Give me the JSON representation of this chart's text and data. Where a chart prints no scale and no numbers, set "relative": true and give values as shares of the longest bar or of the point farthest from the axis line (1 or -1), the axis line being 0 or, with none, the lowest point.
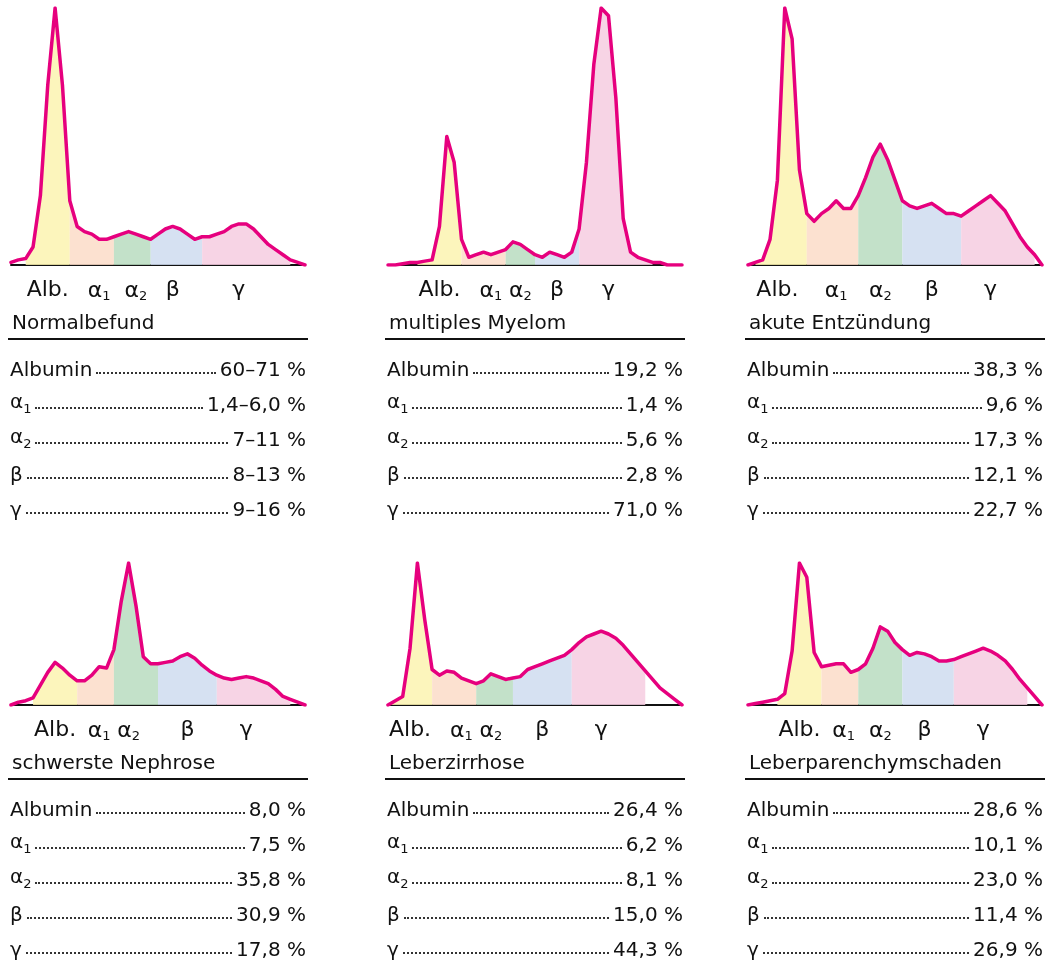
{
  "chart_data": [
    {
      "type": "line",
      "title": "Normalbefund",
      "relative": true,
      "categories": [
        null,
        null,
        null,
        null,
        null,
        "Alb.",
        null,
        null,
        null,
        null,
        null,
        null,
        "α$_{1}$",
        null,
        null,
        null,
        null,
        "α$_{2}$",
        null,
        null,
        null,
        null,
        "β",
        null,
        null,
        null,
        null,
        null,
        null,
        null,
        null,
        "γ",
        null,
        null,
        null,
        null,
        null,
        null,
        null,
        null,
        null
      ],
      "series": [
        {
          "color": "#e6007e",
          "values": [
            0.01,
            0.02,
            0.025,
            0.07,
            0.27,
            0.7,
            1,
            0.7,
            0.25,
            0.15,
            0.13,
            0.12,
            0.1,
            0.1,
            0.11,
            0.12,
            0.13,
            0.12,
            0.11,
            0.1,
            0.12,
            0.14,
            0.15,
            0.14,
            0.12,
            0.1,
            0.11,
            0.11,
            0.12,
            0.13,
            0.15,
            0.16,
            0.16,
            0.14,
            0.11,
            0.08,
            0.06,
            0.04,
            0.02,
            0.01,
            0
          ]
        },
        {
          "type": "area",
          "color": "#fbf3b0",
          "values": [
            null,
            null,
            0.025,
            0.07,
            0.27,
            0.7,
            1,
            0.7,
            0.25,
            null,
            null,
            null,
            null,
            null,
            null,
            null,
            null,
            null,
            null,
            null,
            null,
            null,
            null,
            null,
            null,
            null,
            null,
            null,
            null,
            null,
            null,
            null,
            null,
            null,
            null,
            null,
            null,
            null,
            null,
            null,
            null
          ]
        },
        {
          "type": "area",
          "color": "#fbdcc8",
          "values": [
            null,
            null,
            null,
            null,
            null,
            null,
            null,
            null,
            0.25,
            0.15,
            0.13,
            0.12,
            0.1,
            0.1,
            0.11,
            null,
            null,
            null,
            null,
            null,
            null,
            null,
            null,
            null,
            null,
            null,
            null,
            null,
            null,
            null,
            null,
            null,
            null,
            null,
            null,
            null,
            null,
            null,
            null,
            null,
            null
          ]
        },
        {
          "type": "area",
          "color": "#b9dcc0",
          "values": [
            null,
            null,
            null,
            null,
            null,
            null,
            null,
            null,
            null,
            null,
            null,
            null,
            null,
            null,
            0.11,
            0.12,
            0.13,
            0.12,
            0.11,
            0.1,
            null,
            null,
            null,
            null,
            null,
            null,
            null,
            null,
            null,
            null,
            null,
            null,
            null,
            null,
            null,
            null,
            null,
            null,
            null,
            null,
            null
          ]
        },
        {
          "type": "area",
          "color": "#cfdcf0",
          "values": [
            null,
            null,
            null,
            null,
            null,
            null,
            null,
            null,
            null,
            null,
            null,
            null,
            null,
            null,
            null,
            null,
            null,
            null,
            null,
            0.1,
            0.12,
            0.14,
            0.15,
            0.14,
            0.12,
            0.1,
            0.11,
            null,
            null,
            null,
            null,
            null,
            null,
            null,
            null,
            null,
            null,
            null,
            null,
            null,
            null
          ]
        },
        {
          "type": "area",
          "color": "#f6cde0",
          "values": [
            null,
            null,
            null,
            null,
            null,
            null,
            null,
            null,
            null,
            null,
            null,
            null,
            null,
            null,
            null,
            null,
            null,
            null,
            null,
            null,
            null,
            null,
            null,
            null,
            null,
            null,
            0.11,
            0.11,
            0.12,
            0.13,
            0.15,
            0.16,
            0.16,
            0.14,
            0.11,
            0.08,
            0.06,
            0.04,
            0.02,
            null,
            null
          ]
        }
      ],
      "annotations": [
        "Albumin\t60–71 %",
        "α$_{1}$\t1,4–6,0 %",
        "α$_{2}$\t7–11 %",
        "β\t8–13 %",
        "γ\t9–16 %"
      ]
    },
    {
      "type": "line",
      "title": "multiples Myelom",
      "relative": true,
      "categories": [
        null,
        null,
        null,
        null,
        null,
        null,
        null,
        "Alb.",
        null,
        null,
        null,
        null,
        null,
        null,
        "α$_{1}$",
        null,
        null,
        null,
        "α$_{2}$",
        null,
        null,
        null,
        null,
        "β",
        null,
        null,
        null,
        null,
        null,
        null,
        "γ",
        null,
        null,
        null,
        null,
        null,
        null,
        null,
        null,
        null,
        null
      ],
      "series": [
        {
          "color": "#e6007e",
          "values": [
            0,
            0,
            0.005,
            0.01,
            0.01,
            0.015,
            0.02,
            0.15,
            0.5,
            0.4,
            0.1,
            0.03,
            0.04,
            0.05,
            0.04,
            0.05,
            0.06,
            0.09,
            0.08,
            0.06,
            0.04,
            0.03,
            0.05,
            0.04,
            0.03,
            0.05,
            0.14,
            0.4,
            0.78,
            1,
            0.97,
            0.65,
            0.18,
            0.05,
            0.03,
            0.02,
            0.01,
            0.01,
            0,
            0,
            0
          ]
        },
        {
          "type": "area",
          "color": "#fbf3b0",
          "values": [
            null,
            null,
            null,
            null,
            0.01,
            0.015,
            0.02,
            0.15,
            0.5,
            0.4,
            0.1,
            null,
            null,
            null,
            null,
            null,
            null,
            null,
            null,
            null,
            null,
            null,
            null,
            null,
            null,
            null,
            null,
            null,
            null,
            null,
            null,
            null,
            null,
            null,
            null,
            null,
            null,
            null,
            null,
            null,
            null
          ]
        },
        {
          "type": "area",
          "color": "#fbdcc8",
          "values": [
            null,
            null,
            null,
            null,
            null,
            null,
            null,
            null,
            null,
            null,
            0.1,
            0.03,
            0.04,
            0.05,
            0.04,
            0.05,
            0.06,
            null,
            null,
            null,
            null,
            null,
            null,
            null,
            null,
            null,
            null,
            null,
            null,
            null,
            null,
            null,
            null,
            null,
            null,
            null,
            null,
            null,
            null,
            null,
            null
          ]
        },
        {
          "type": "area",
          "color": "#b9dcc0",
          "values": [
            null,
            null,
            null,
            null,
            null,
            null,
            null,
            null,
            null,
            null,
            null,
            null,
            null,
            null,
            null,
            null,
            0.06,
            0.09,
            0.08,
            0.06,
            0.04,
            null,
            null,
            null,
            null,
            null,
            null,
            null,
            null,
            null,
            null,
            null,
            null,
            null,
            null,
            null,
            null,
            null,
            null,
            null,
            null
          ]
        },
        {
          "type": "area",
          "color": "#cfdcf0",
          "values": [
            null,
            null,
            null,
            null,
            null,
            null,
            null,
            null,
            null,
            null,
            null,
            null,
            null,
            null,
            null,
            null,
            null,
            null,
            null,
            null,
            0.04,
            0.03,
            0.05,
            0.04,
            0.03,
            0.05,
            0.14,
            null,
            null,
            null,
            null,
            null,
            null,
            null,
            null,
            null,
            null,
            null,
            null,
            null,
            null
          ]
        },
        {
          "type": "area",
          "color": "#f6cde0",
          "values": [
            null,
            null,
            null,
            null,
            null,
            null,
            null,
            null,
            null,
            null,
            null,
            null,
            null,
            null,
            null,
            null,
            null,
            null,
            null,
            null,
            null,
            null,
            null,
            null,
            null,
            null,
            0.14,
            0.4,
            0.78,
            1,
            0.97,
            0.65,
            0.18,
            0.05,
            0.03,
            0.02,
            0.01,
            null,
            null,
            null,
            null
          ]
        }
      ],
      "annotations": [
        "Albumin\t19,2 %",
        "α$_{1}$\t1,4 %",
        "α$_{2}$\t5,6 %",
        "β\t2,8 %",
        "γ\t71,0 %"
      ]
    },
    {
      "type": "line",
      "title": "akute Entzündung",
      "relative": true,
      "categories": [
        null,
        null,
        null,
        null,
        "Alb.",
        null,
        null,
        null,
        null,
        null,
        null,
        null,
        "α$_{1}$",
        null,
        null,
        null,
        null,
        null,
        "α$_{2}$",
        null,
        null,
        null,
        null,
        null,
        null,
        "β",
        null,
        null,
        null,
        null,
        null,
        null,
        null,
        "γ",
        null,
        null,
        null,
        null,
        null,
        null,
        null
      ],
      "series": [
        {
          "color": "#e6007e",
          "values": [
            0,
            0.01,
            0.02,
            0.1,
            0.33,
            1,
            0.88,
            0.37,
            0.2,
            0.17,
            0.2,
            0.22,
            0.25,
            0.22,
            0.22,
            0.27,
            0.34,
            0.42,
            0.47,
            0.41,
            0.33,
            0.25,
            0.23,
            0.22,
            0.23,
            0.24,
            0.22,
            0.2,
            0.2,
            0.19,
            0.21,
            0.23,
            0.25,
            0.27,
            0.24,
            0.21,
            0.16,
            0.11,
            0.07,
            0.04,
            0
          ]
        },
        {
          "type": "area",
          "color": "#fbf3b0",
          "values": [
            null,
            0.01,
            0.02,
            0.1,
            0.33,
            1,
            0.88,
            0.37,
            0.2,
            null,
            null,
            null,
            null,
            null,
            null,
            null,
            null,
            null,
            null,
            null,
            null,
            null,
            null,
            null,
            null,
            null,
            null,
            null,
            null,
            null,
            null,
            null,
            null,
            null,
            null,
            null,
            null,
            null,
            null,
            null,
            null
          ]
        },
        {
          "type": "area",
          "color": "#fbdcc8",
          "values": [
            null,
            null,
            null,
            null,
            null,
            null,
            null,
            null,
            0.2,
            0.17,
            0.2,
            0.22,
            0.25,
            0.22,
            0.22,
            0.27,
            null,
            null,
            null,
            null,
            null,
            null,
            null,
            null,
            null,
            null,
            null,
            null,
            null,
            null,
            null,
            null,
            null,
            null,
            null,
            null,
            null,
            null,
            null,
            null,
            null
          ]
        },
        {
          "type": "area",
          "color": "#b9dcc0",
          "values": [
            null,
            null,
            null,
            null,
            null,
            null,
            null,
            null,
            null,
            null,
            null,
            null,
            null,
            null,
            null,
            0.27,
            0.34,
            0.42,
            0.47,
            0.41,
            0.33,
            0.25,
            null,
            null,
            null,
            null,
            null,
            null,
            null,
            null,
            null,
            null,
            null,
            null,
            null,
            null,
            null,
            null,
            null,
            null,
            null
          ]
        },
        {
          "type": "area",
          "color": "#cfdcf0",
          "values": [
            null,
            null,
            null,
            null,
            null,
            null,
            null,
            null,
            null,
            null,
            null,
            null,
            null,
            null,
            null,
            null,
            null,
            null,
            null,
            null,
            null,
            0.25,
            0.23,
            0.22,
            0.23,
            0.24,
            0.22,
            0.2,
            0.2,
            0.19,
            null,
            null,
            null,
            null,
            null,
            null,
            null,
            null,
            null,
            null,
            null
          ]
        },
        {
          "type": "area",
          "color": "#f6cde0",
          "values": [
            null,
            null,
            null,
            null,
            null,
            null,
            null,
            null,
            null,
            null,
            null,
            null,
            null,
            null,
            null,
            null,
            null,
            null,
            null,
            null,
            null,
            null,
            null,
            null,
            null,
            null,
            null,
            null,
            null,
            0.19,
            0.21,
            0.23,
            0.25,
            0.27,
            0.24,
            0.21,
            0.16,
            0.11,
            0.07,
            0.04,
            null
          ]
        }
      ],
      "annotations": [
        "Albumin\t38,3 %",
        "α$_{1}$\t9,6 %",
        "α$_{2}$\t17,3 %",
        "β\t12,1 %",
        "γ\t22,7 %"
      ]
    },
    {
      "type": "line",
      "title": "schwerste Nephrose",
      "relative": true,
      "categories": [
        null,
        null,
        null,
        null,
        null,
        null,
        "Alb.",
        null,
        null,
        null,
        null,
        null,
        "α$_{1}$",
        null,
        null,
        null,
        "α$_{2}$",
        null,
        null,
        null,
        null,
        null,
        null,
        null,
        "β",
        null,
        null,
        null,
        null,
        null,
        null,
        null,
        "γ",
        null,
        null,
        null,
        null,
        null,
        null,
        null,
        null
      ],
      "series": [
        {
          "color": "#e6007e",
          "values": [
            0,
            0.02,
            0.03,
            0.05,
            0.14,
            0.23,
            0.3,
            0.26,
            0.21,
            0.17,
            0.17,
            0.21,
            0.27,
            0.26,
            0.39,
            0.73,
            1,
            0.7,
            0.34,
            0.29,
            0.29,
            0.3,
            0.31,
            0.34,
            0.36,
            0.33,
            0.28,
            0.24,
            0.21,
            0.19,
            0.18,
            0.19,
            0.2,
            0.19,
            0.17,
            0.15,
            0.11,
            0.06,
            0.04,
            0.02,
            0
          ]
        },
        {
          "type": "area",
          "color": "#fbf3b0",
          "values": [
            null,
            null,
            null,
            0.05,
            0.14,
            0.23,
            0.3,
            0.26,
            0.21,
            0.17,
            null,
            null,
            null,
            null,
            null,
            null,
            null,
            null,
            null,
            null,
            null,
            null,
            null,
            null,
            null,
            null,
            null,
            null,
            null,
            null,
            null,
            null,
            null,
            null,
            null,
            null,
            null,
            null,
            null,
            null,
            null
          ]
        },
        {
          "type": "area",
          "color": "#fbdcc8",
          "values": [
            null,
            null,
            null,
            null,
            null,
            null,
            null,
            null,
            null,
            0.17,
            0.17,
            0.21,
            0.27,
            0.26,
            0.39,
            null,
            null,
            null,
            null,
            null,
            null,
            null,
            null,
            null,
            null,
            null,
            null,
            null,
            null,
            null,
            null,
            null,
            null,
            null,
            null,
            null,
            null,
            null,
            null,
            null,
            null
          ]
        },
        {
          "type": "area",
          "color": "#b9dcc0",
          "values": [
            null,
            null,
            null,
            null,
            null,
            null,
            null,
            null,
            null,
            null,
            null,
            null,
            null,
            null,
            0.39,
            0.73,
            1,
            0.7,
            0.34,
            0.29,
            0.29,
            null,
            null,
            null,
            null,
            null,
            null,
            null,
            null,
            null,
            null,
            null,
            null,
            null,
            null,
            null,
            null,
            null,
            null,
            null,
            null
          ]
        },
        {
          "type": "area",
          "color": "#cfdcf0",
          "values": [
            null,
            null,
            null,
            null,
            null,
            null,
            null,
            null,
            null,
            null,
            null,
            null,
            null,
            null,
            null,
            null,
            null,
            null,
            null,
            null,
            0.29,
            0.3,
            0.31,
            0.34,
            0.36,
            0.33,
            0.28,
            0.24,
            0.21,
            null,
            null,
            null,
            null,
            null,
            null,
            null,
            null,
            null,
            null,
            null,
            null
          ]
        },
        {
          "type": "area",
          "color": "#f6cde0",
          "values": [
            null,
            null,
            null,
            null,
            null,
            null,
            null,
            null,
            null,
            null,
            null,
            null,
            null,
            null,
            null,
            null,
            null,
            null,
            null,
            null,
            null,
            null,
            null,
            null,
            null,
            null,
            null,
            null,
            0.21,
            0.19,
            0.18,
            0.19,
            0.2,
            0.19,
            0.17,
            0.15,
            0.11,
            0.06,
            0.04,
            null,
            null
          ]
        }
      ],
      "annotations": [
        "Albumin\t8,0 %",
        "α$_{1}$\t7,5 %",
        "α$_{2}$\t35,8 %",
        "β\t30,9 %",
        "γ\t17,8 %"
      ]
    },
    {
      "type": "line",
      "title": "Leberzirrhose",
      "relative": true,
      "categories": [
        null,
        null,
        null,
        "Alb.",
        null,
        null,
        null,
        null,
        null,
        null,
        "α$_{1}$",
        null,
        null,
        null,
        "α$_{2}$",
        null,
        null,
        null,
        null,
        null,
        null,
        "β",
        null,
        null,
        null,
        null,
        null,
        null,
        null,
        "γ",
        null,
        null,
        null,
        null,
        null,
        null,
        null,
        null,
        null,
        null,
        null
      ],
      "series": [
        {
          "color": "#e6007e",
          "values": [
            0,
            0.03,
            0.06,
            0.4,
            1,
            0.6,
            0.25,
            0.21,
            0.24,
            0.23,
            0.19,
            0.17,
            0.15,
            0.17,
            0.22,
            0.2,
            0.18,
            0.19,
            0.2,
            0.25,
            0.27,
            0.29,
            0.31,
            0.33,
            0.35,
            0.39,
            0.44,
            0.48,
            0.5,
            0.52,
            0.5,
            0.47,
            0.42,
            0.36,
            0.3,
            0.24,
            0.18,
            0.12,
            0.08,
            0.04,
            0
          ]
        },
        {
          "type": "area",
          "color": "#fbf3b0",
          "values": [
            0,
            0.03,
            0.06,
            0.4,
            1,
            0.6,
            0.25,
            null,
            null,
            null,
            null,
            null,
            null,
            null,
            null,
            null,
            null,
            null,
            null,
            null,
            null,
            null,
            null,
            null,
            null,
            null,
            null,
            null,
            null,
            null,
            null,
            null,
            null,
            null,
            null,
            null,
            null,
            null,
            null,
            null,
            null
          ]
        },
        {
          "type": "area",
          "color": "#fbdcc8",
          "values": [
            null,
            null,
            null,
            null,
            null,
            null,
            0.25,
            0.21,
            0.24,
            0.23,
            0.19,
            0.17,
            0.15,
            null,
            null,
            null,
            null,
            null,
            null,
            null,
            null,
            null,
            null,
            null,
            null,
            null,
            null,
            null,
            null,
            null,
            null,
            null,
            null,
            null,
            null,
            null,
            null,
            null,
            null,
            null,
            null
          ]
        },
        {
          "type": "area",
          "color": "#b9dcc0",
          "values": [
            null,
            null,
            null,
            null,
            null,
            null,
            null,
            null,
            null,
            null,
            null,
            null,
            0.15,
            0.17,
            0.22,
            0.2,
            0.18,
            0.19,
            null,
            null,
            null,
            null,
            null,
            null,
            null,
            null,
            null,
            null,
            null,
            null,
            null,
            null,
            null,
            null,
            null,
            null,
            null,
            null,
            null,
            null,
            null
          ]
        },
        {
          "type": "area",
          "color": "#cfdcf0",
          "values": [
            null,
            null,
            null,
            null,
            null,
            null,
            null,
            null,
            null,
            null,
            null,
            null,
            null,
            null,
            null,
            null,
            null,
            0.19,
            0.2,
            0.25,
            0.27,
            0.29,
            0.31,
            0.33,
            0.35,
            0.39,
            null,
            null,
            null,
            null,
            null,
            null,
            null,
            null,
            null,
            null,
            null,
            null,
            null,
            null,
            null
          ]
        },
        {
          "type": "area",
          "color": "#f6cde0",
          "values": [
            null,
            null,
            null,
            null,
            null,
            null,
            null,
            null,
            null,
            null,
            null,
            null,
            null,
            null,
            null,
            null,
            null,
            null,
            null,
            null,
            null,
            null,
            null,
            null,
            null,
            0.39,
            0.44,
            0.48,
            0.5,
            0.52,
            0.5,
            0.47,
            0.42,
            0.36,
            0.3,
            0.24,
            null,
            null,
            null,
            null,
            null
          ]
        }
      ],
      "annotations": [
        "Albumin\t26,4 %",
        "α$_{1}$\t6,2 %",
        "α$_{2}$\t8,1 %",
        "β\t15,0 %",
        "γ\t44,3 %"
      ]
    },
    {
      "type": "line",
      "title": "Leberparenchymschaden",
      "relative": true,
      "categories": [
        null,
        null,
        null,
        null,
        null,
        null,
        null,
        "Alb.",
        null,
        null,
        null,
        null,
        null,
        "α$_{1}$",
        null,
        null,
        null,
        null,
        "α$_{2}$",
        null,
        null,
        null,
        null,
        null,
        "β",
        null,
        null,
        null,
        null,
        null,
        null,
        null,
        "γ",
        null,
        null,
        null,
        null,
        null,
        null,
        null,
        null
      ],
      "series": [
        {
          "color": "#e6007e",
          "values": [
            0,
            0.01,
            0.02,
            0.03,
            0.04,
            0.08,
            0.38,
            1,
            0.9,
            0.37,
            0.27,
            0.28,
            0.29,
            0.29,
            0.23,
            0.25,
            0.29,
            0.4,
            0.55,
            0.52,
            0.44,
            0.39,
            0.35,
            0.37,
            0.36,
            0.34,
            0.31,
            0.31,
            0.32,
            0.34,
            0.36,
            0.38,
            0.4,
            0.38,
            0.35,
            0.31,
            0.25,
            0.18,
            0.12,
            0.06,
            0
          ]
        },
        {
          "type": "area",
          "color": "#fbf3b0",
          "values": [
            null,
            null,
            null,
            null,
            0.04,
            0.08,
            0.38,
            1,
            0.9,
            0.37,
            0.27,
            null,
            null,
            null,
            null,
            null,
            null,
            null,
            null,
            null,
            null,
            null,
            null,
            null,
            null,
            null,
            null,
            null,
            null,
            null,
            null,
            null,
            null,
            null,
            null,
            null,
            null,
            null,
            null,
            null,
            null
          ]
        },
        {
          "type": "area",
          "color": "#fbdcc8",
          "values": [
            null,
            null,
            null,
            null,
            null,
            null,
            null,
            null,
            null,
            null,
            0.27,
            0.28,
            0.29,
            0.29,
            0.23,
            0.25,
            null,
            null,
            null,
            null,
            null,
            null,
            null,
            null,
            null,
            null,
            null,
            null,
            null,
            null,
            null,
            null,
            null,
            null,
            null,
            null,
            null,
            null,
            null,
            null,
            null
          ]
        },
        {
          "type": "area",
          "color": "#b9dcc0",
          "values": [
            null,
            null,
            null,
            null,
            null,
            null,
            null,
            null,
            null,
            null,
            null,
            null,
            null,
            null,
            null,
            0.25,
            0.29,
            0.4,
            0.55,
            0.52,
            0.44,
            0.39,
            null,
            null,
            null,
            null,
            null,
            null,
            null,
            null,
            null,
            null,
            null,
            null,
            null,
            null,
            null,
            null,
            null,
            null,
            null
          ]
        },
        {
          "type": "area",
          "color": "#cfdcf0",
          "values": [
            null,
            null,
            null,
            null,
            null,
            null,
            null,
            null,
            null,
            null,
            null,
            null,
            null,
            null,
            null,
            null,
            null,
            null,
            null,
            null,
            null,
            0.39,
            0.35,
            0.37,
            0.36,
            0.34,
            0.31,
            0.31,
            0.32,
            null,
            null,
            null,
            null,
            null,
            null,
            null,
            null,
            null,
            null,
            null,
            null
          ]
        },
        {
          "type": "area",
          "color": "#f6cde0",
          "values": [
            null,
            null,
            null,
            null,
            null,
            null,
            null,
            null,
            null,
            null,
            null,
            null,
            null,
            null,
            null,
            null,
            null,
            null,
            null,
            null,
            null,
            null,
            null,
            null,
            null,
            null,
            null,
            null,
            0.32,
            0.34,
            0.36,
            0.38,
            0.4,
            0.38,
            0.35,
            0.31,
            0.25,
            0.18,
            0.12,
            null,
            null
          ]
        }
      ],
      "annotations": [
        "Albumin\t28,6 %",
        "α$_{1}$\t10,1 %",
        "α$_{2}$\t23,0 %",
        "β\t11,4 %",
        "γ\t26,9 %"
      ]
    }
  ]
}
